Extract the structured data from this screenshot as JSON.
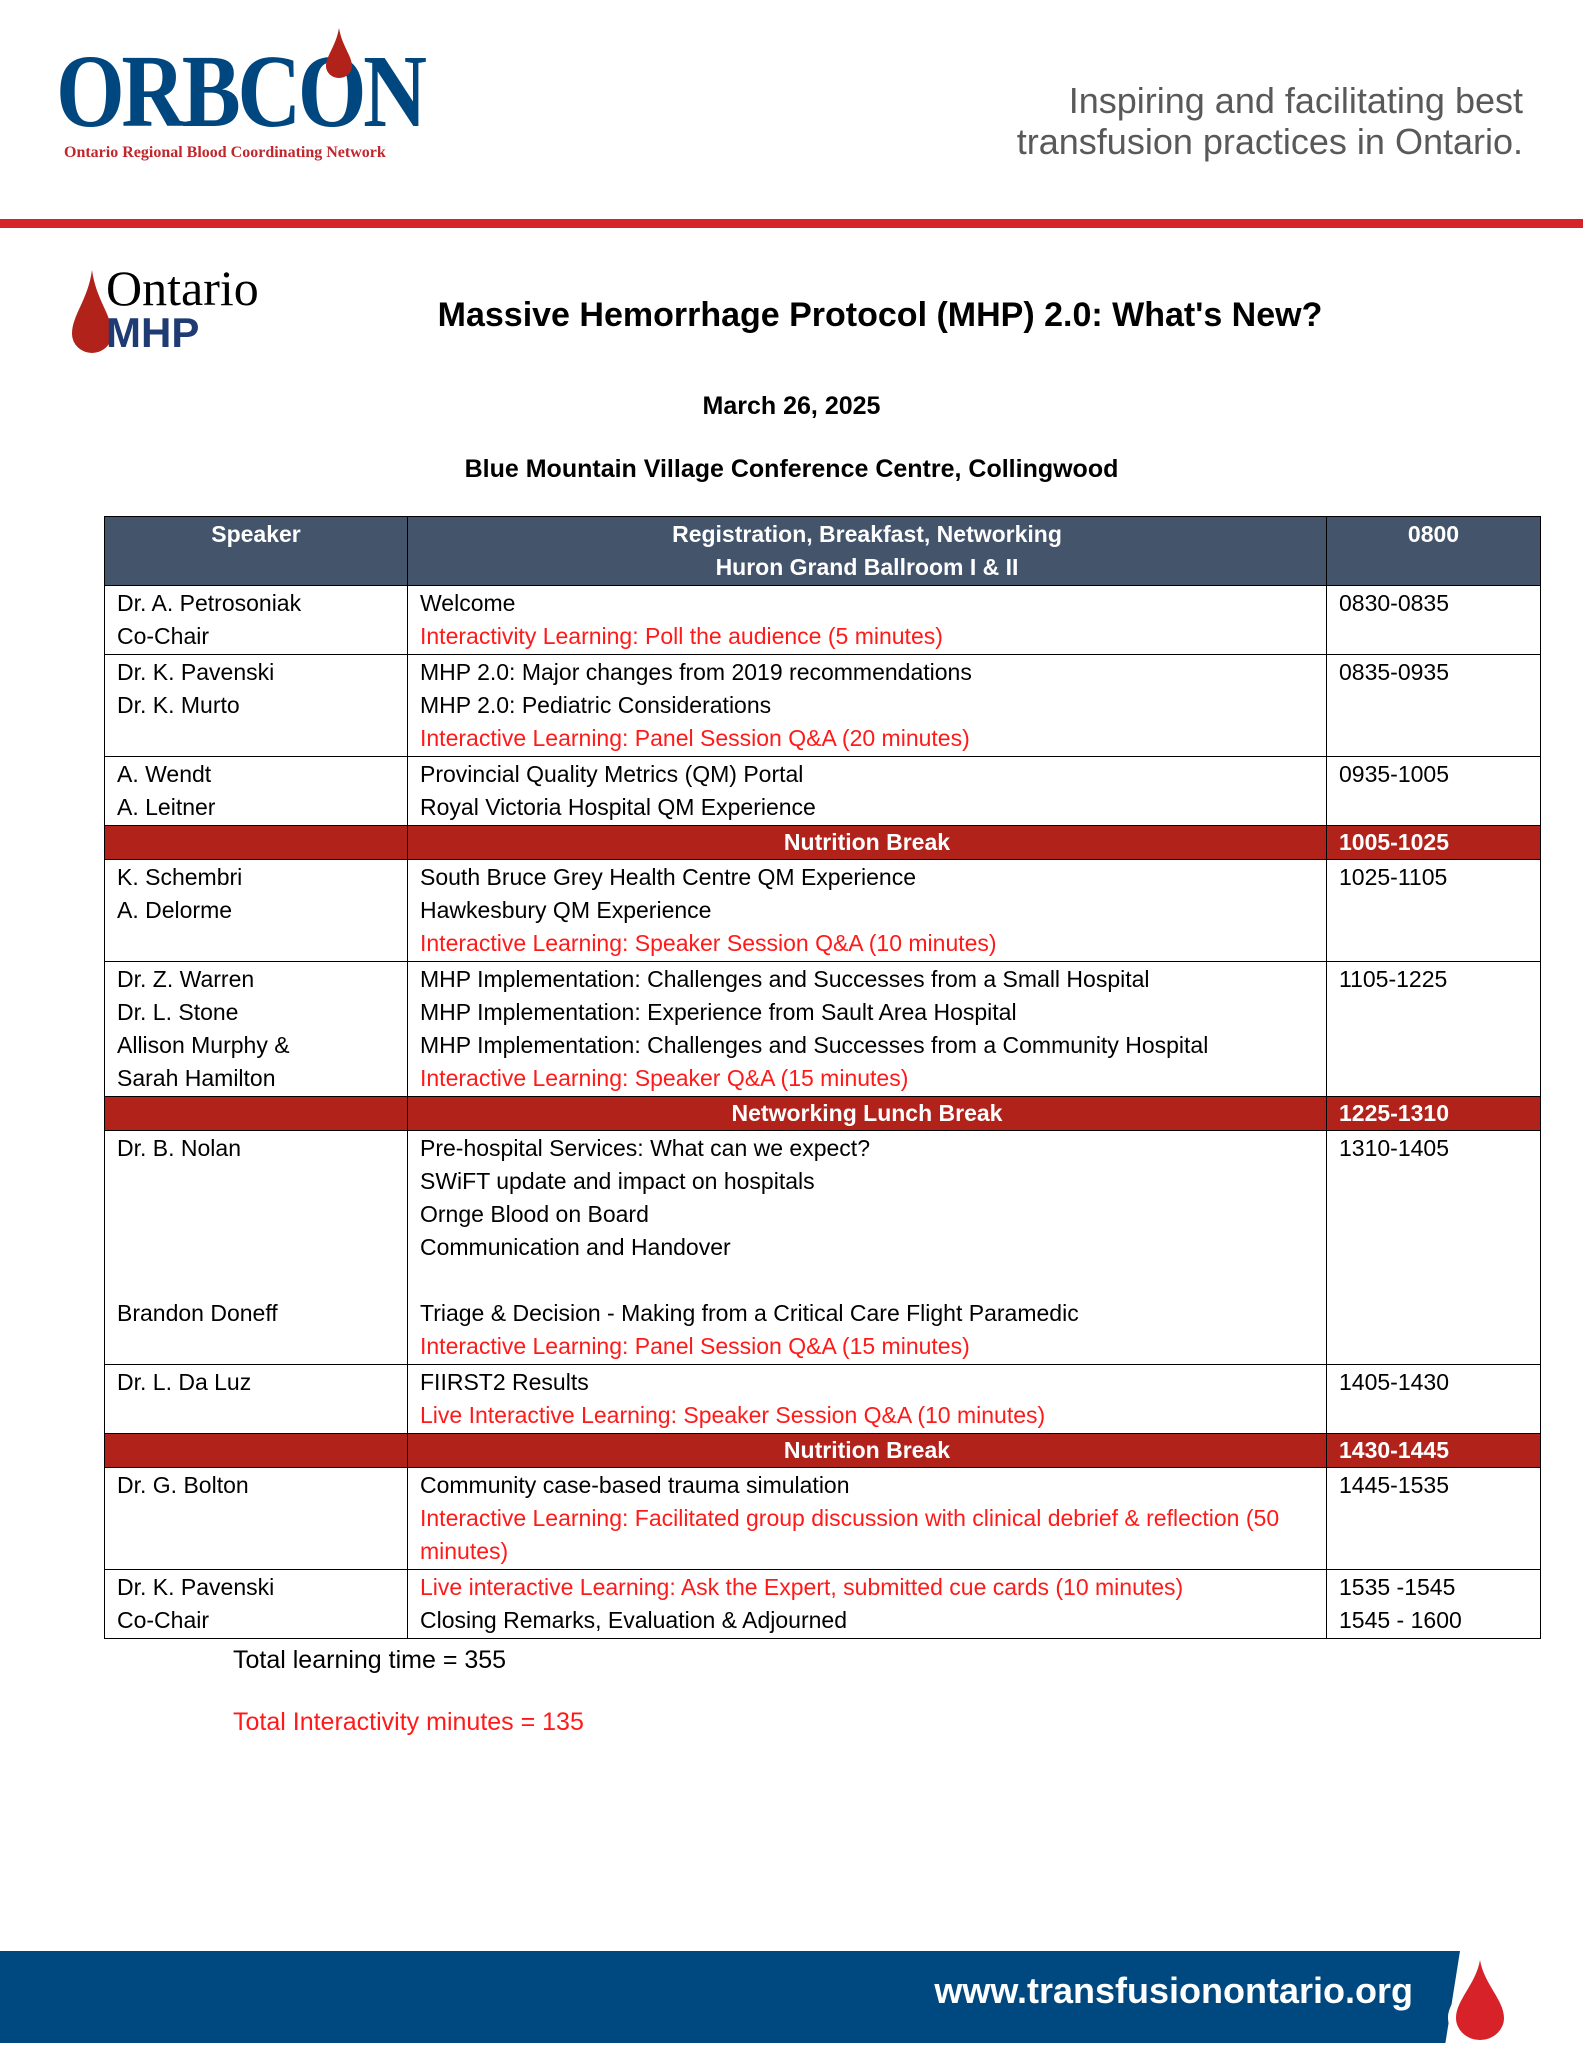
{
  "header": {
    "logo_text": "ORBCON",
    "logo_subtitle": "Ontario Regional Blood Coordinating Network",
    "tagline_line1": "Inspiring and facilitating best",
    "tagline_line2": "transfusion practices in Ontario."
  },
  "mhp_logo": {
    "line1": "Ontario",
    "line2": "MHP"
  },
  "title": "Massive Hemorrhage Protocol (MHP) 2.0: What's New?",
  "date": "March 26, 2025",
  "venue": "Blue Mountain Village Conference Centre, Collingwood",
  "colors": {
    "header_bg": "#44546a",
    "break_bg": "#b0221a",
    "interactive_text": "#ff1a1a",
    "footer_bg": "#004880",
    "accent_red": "#d7222a"
  },
  "table": {
    "header": {
      "speaker": "Speaker",
      "session_line1": "Registration, Breakfast, Networking",
      "session_line2": "Huron Grand Ballroom I & II",
      "time": "0800"
    },
    "rows": [
      {
        "type": "session",
        "speakers": [
          "Dr. A. Petrosoniak",
          "Co-Chair"
        ],
        "items": [
          {
            "text": "Welcome",
            "red": false
          },
          {
            "text": "Interactivity Learning: Poll the audience (5 minutes)",
            "red": true
          }
        ],
        "times": [
          "0830-0835"
        ]
      },
      {
        "type": "session",
        "speakers": [
          "Dr. K. Pavenski",
          "Dr. K. Murto"
        ],
        "items": [
          {
            "text": "MHP 2.0: Major changes from 2019 recommendations",
            "red": false
          },
          {
            "text": "MHP 2.0: Pediatric Considerations",
            "red": false
          },
          {
            "text": "Interactive Learning: Panel Session Q&A (20 minutes)",
            "red": true
          }
        ],
        "times": [
          "0835-0935"
        ]
      },
      {
        "type": "session",
        "speakers": [
          "A. Wendt",
          "A. Leitner"
        ],
        "items": [
          {
            "text": "Provincial Quality Metrics (QM) Portal",
            "red": false
          },
          {
            "text": "Royal Victoria Hospital QM Experience",
            "red": false
          }
        ],
        "times": [
          "0935-1005"
        ]
      },
      {
        "type": "break",
        "label": "Nutrition Break",
        "time": "1005-1025"
      },
      {
        "type": "session",
        "speakers": [
          "K. Schembri",
          "A. Delorme"
        ],
        "items": [
          {
            "text": "South Bruce Grey Health Centre QM Experience",
            "red": false
          },
          {
            "text": "Hawkesbury QM Experience",
            "red": false
          },
          {
            "text": "Interactive Learning: Speaker Session Q&A (10 minutes)",
            "red": true
          }
        ],
        "times": [
          "1025-1105"
        ]
      },
      {
        "type": "session",
        "speakers": [
          "Dr. Z. Warren",
          "Dr. L. Stone",
          "Allison Murphy &",
          "Sarah Hamilton"
        ],
        "items": [
          {
            "text": "MHP Implementation: Challenges and Successes from a Small Hospital",
            "red": false
          },
          {
            "text": "MHP Implementation: Experience from Sault Area Hospital",
            "red": false
          },
          {
            "text": "MHP Implementation: Challenges and Successes from a Community Hospital",
            "red": false
          },
          {
            "text": "Interactive Learning: Speaker Q&A (15 minutes)",
            "red": true
          }
        ],
        "times": [
          "1105-1225"
        ]
      },
      {
        "type": "break",
        "label": "Networking Lunch Break",
        "time": "1225-1310"
      },
      {
        "type": "session",
        "speakers": [
          "Dr. B. Nolan",
          "",
          "",
          "",
          "",
          "Brandon Doneff"
        ],
        "items": [
          {
            "text": "Pre-hospital Services: What can we expect?",
            "red": false
          },
          {
            "text": "SWiFT update and impact on hospitals",
            "red": false
          },
          {
            "text": "Ornge Blood on Board",
            "red": false
          },
          {
            "text": "Communication and Handover",
            "red": false
          },
          {
            "text": "",
            "red": false
          },
          {
            "text": "Triage & Decision - Making from a Critical Care Flight Paramedic",
            "red": false
          },
          {
            "text": "Interactive Learning: Panel Session Q&A (15 minutes)",
            "red": true
          }
        ],
        "times": [
          "1310-1405"
        ]
      },
      {
        "type": "session",
        "speakers": [
          "Dr. L. Da Luz"
        ],
        "items": [
          {
            "text": "FIIRST2 Results",
            "red": false
          },
          {
            "text": "Live Interactive Learning: Speaker Session Q&A (10 minutes)",
            "red": true
          }
        ],
        "times": [
          "1405-1430"
        ]
      },
      {
        "type": "break",
        "label": "Nutrition Break",
        "time": "1430-1445"
      },
      {
        "type": "session",
        "speakers": [
          "Dr. G. Bolton"
        ],
        "items": [
          {
            "text": "Community case-based trauma simulation",
            "red": false
          },
          {
            "text": "Interactive Learning: Facilitated group discussion with clinical debrief & reflection (50 minutes)",
            "red": true,
            "wrap": true
          }
        ],
        "times": [
          "1445-1535"
        ]
      },
      {
        "type": "session",
        "speakers": [
          "Dr. K. Pavenski",
          "Co-Chair"
        ],
        "items": [
          {
            "text": "Live interactive Learning: Ask the Expert, submitted cue cards (10 minutes)",
            "red": true
          },
          {
            "text": "Closing Remarks, Evaluation & Adjourned",
            "red": false
          }
        ],
        "times": [
          "1535 -1545",
          "1545 - 1600"
        ]
      }
    ]
  },
  "totals": {
    "learning": "Total learning time = 355",
    "interactivity": "Total Interactivity minutes = 135"
  },
  "footer": {
    "url": "www.transfusionontario.org"
  }
}
